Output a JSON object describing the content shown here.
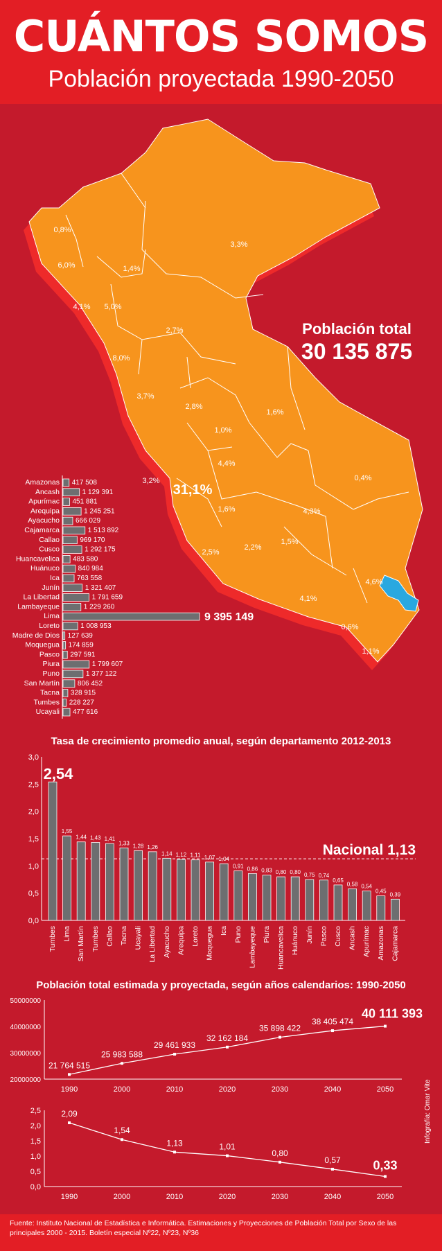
{
  "header": {
    "title": "CUÁNTOS SOMOS",
    "subtitle": "Población proyectada 1990-2050"
  },
  "map": {
    "total_label": "Población total",
    "total_value": "30 135 875",
    "region_percents": [
      "0,8%",
      "6,0%",
      "1,4%",
      "3,3%",
      "4,1%",
      "5,0%",
      "2,7%",
      "8,0%",
      "3,7%",
      "2,8%",
      "1,6%",
      "1,0%",
      "4,4%",
      "0,4%",
      "3,2%",
      "31,1%",
      "1,6%",
      "4,3%",
      "1,5%",
      "2,2%",
      "2,5%",
      "4,6%",
      "4,1%",
      "0,6%",
      "1,1%"
    ],
    "colors": {
      "map": "#f7941d",
      "madre_de_dios_lake": "#29a8e0",
      "shadow": "#ee2a2a"
    }
  },
  "chart_data": [
    {
      "type": "bar",
      "orientation": "horizontal",
      "title": "",
      "categories": [
        "Amazonas",
        "Ancash",
        "Apurímac",
        "Arequipa",
        "Ayacucho",
        "Cajamarca",
        "Callao",
        "Cusco",
        "Huancavelica",
        "Huánuco",
        "Ica",
        "Junín",
        "La Libertad",
        "Lambayeque",
        "Lima",
        "Loreto",
        "Madre de Dios",
        "Moquegua",
        "Pasco",
        "Piura",
        "Puno",
        "San Martín",
        "Tacna",
        "Tumbes",
        "Ucayali"
      ],
      "values": [
        417508,
        1129391,
        451881,
        1245251,
        666029,
        1513892,
        969170,
        1292175,
        483580,
        840984,
        763558,
        1321407,
        1791659,
        1229260,
        9395149,
        1008953,
        127639,
        174859,
        297591,
        1799607,
        1377122,
        806452,
        328915,
        228227,
        477616
      ],
      "value_labels": [
        "417 508",
        "1 129 391",
        "451 881",
        "1 245 251",
        "666 029",
        "1 513 892",
        "969 170",
        "1 292 175",
        "483 580",
        "840 984",
        "763 558",
        "1 321 407",
        "1 791 659",
        "1 229 260",
        "9 395 149",
        "1 008 953",
        "127 639",
        "174 859",
        "297 591",
        "1 799 607",
        "1 377 122",
        "806 452",
        "328 915",
        "228 227",
        "477 616"
      ],
      "bar_color": "#6d6e70"
    },
    {
      "type": "bar",
      "title": "Tasa de crecimiento promedio anual, según departamento 2012-2013",
      "categories": [
        "Tumbes",
        "Lima",
        "San Martín",
        "Tumbes",
        "Callao",
        "Tacna",
        "Ucayali",
        "La Libertad",
        "Ayacucho",
        "Arequipa",
        "Loreto",
        "Moquegua",
        "Ica",
        "Puno",
        "Lambayeque",
        "Piura",
        "Huancavelica",
        "Huánuco",
        "Junín",
        "Pasco",
        "Cusco",
        "Ancash",
        "Apurímac",
        "Amazonas",
        "Cajamarca"
      ],
      "values": [
        2.54,
        1.55,
        1.44,
        1.43,
        1.41,
        1.33,
        1.28,
        1.26,
        1.14,
        1.12,
        1.11,
        1.07,
        1.04,
        0.91,
        0.86,
        0.83,
        0.8,
        0.8,
        0.75,
        0.74,
        0.65,
        0.58,
        0.54,
        0.45,
        0.39
      ],
      "value_labels": [
        "2,54",
        "1,55",
        "1,44",
        "1,43",
        "1,41",
        "1,33",
        "1,28",
        "1,26",
        "1,14",
        "1,12",
        "1,11",
        "1,07",
        "1,04",
        "0,91",
        "0,86",
        "0,83",
        "0,80",
        "0,80",
        "0,75",
        "0,74",
        "0,65",
        "0,58",
        "0,54",
        "0,45",
        "0,39"
      ],
      "ylim": [
        0,
        3
      ],
      "yticks": [
        "0,0",
        "0,5",
        "1,0",
        "1,5",
        "2,0",
        "2,5",
        "3,0"
      ],
      "reference": {
        "label": "Nacional 1,13",
        "value": 1.13
      },
      "bar_color": "#6d6e70"
    },
    {
      "type": "line",
      "title": "Población total estimada y proyectada, según años calendarios: 1990-2050",
      "x": [
        "1990",
        "2000",
        "2010",
        "2020",
        "2030",
        "2040",
        "2050"
      ],
      "values": [
        21764515,
        25983588,
        29461933,
        32162184,
        35898422,
        38405474,
        40111393
      ],
      "value_labels": [
        "21 764 515",
        "25 983 588",
        "29 461 933",
        "32 162 184",
        "35 898 422",
        "38 405 474",
        "40 111 393"
      ],
      "ylim": [
        20000000,
        50000000
      ],
      "yticks": [
        "20000000",
        "30000000",
        "40000000",
        "50000000"
      ]
    },
    {
      "type": "line",
      "title": "",
      "x": [
        "1990",
        "2000",
        "2010",
        "2020",
        "2030",
        "2040",
        "2050"
      ],
      "values": [
        2.09,
        1.54,
        1.13,
        1.01,
        0.8,
        0.57,
        0.33
      ],
      "value_labels": [
        "2,09",
        "1,54",
        "1,13",
        "1,01",
        "0,80",
        "0,57",
        "0,33"
      ],
      "ylim": [
        0,
        2.5
      ],
      "yticks": [
        "0,0",
        "0,5",
        "1,0",
        "1,5",
        "2,0",
        "2,5"
      ]
    }
  ],
  "footer": {
    "source": "Fuente: Instituto Nacional de Estadística e Informática. Estimaciones y Proyecciones de Población Total por Sexo de las principales 2000 - 2015. Boletín especial Nº22, Nº23, Nº36",
    "credit": "Infografía: Omar Vite"
  }
}
